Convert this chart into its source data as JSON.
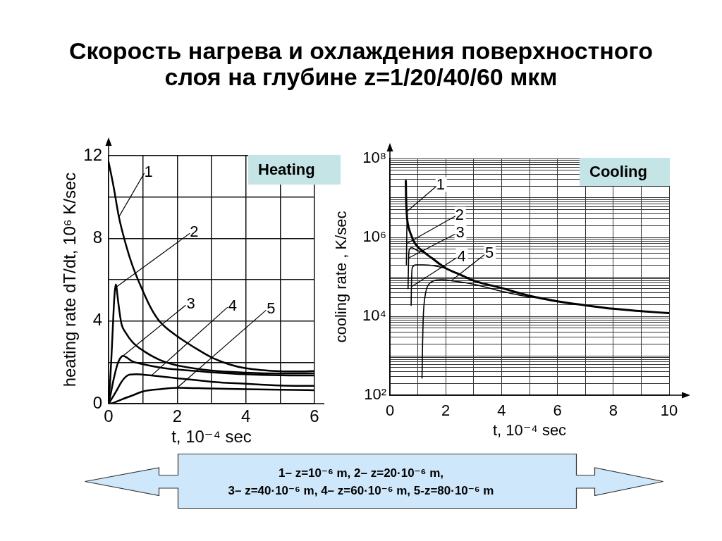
{
  "chart_data": [
    {
      "type": "line",
      "title": "Скорость нагрева и охлаждения поверхностного слоя на глубине z=1/20/40/60 мкм",
      "subtitle": "Heating",
      "xlabel": "t, 10⁻⁴ sec",
      "ylabel": "heating rate dT/dt, 10⁶ K/sec",
      "annotations": [
        "1– z=10⁻⁶ m, 2– z=20·10⁻⁶ m,",
        "3– z=40·10⁻⁶ m, 4– z=60·10⁻⁶ m, 5-z=80·10⁻⁶ m"
      ],
      "xlim": [
        0,
        6
      ],
      "xticks": [
        0,
        {
          "value": 1,
          "label": null
        },
        2,
        {
          "value": 3,
          "label": null
        },
        4,
        {
          "value": 5,
          "label": null
        },
        6
      ],
      "ylim": [
        0,
        12
      ],
      "yticks": [
        0,
        {
          "value": 2,
          "label": null
        },
        4,
        {
          "value": 6,
          "label": null
        },
        8,
        {
          "value": 10,
          "label": null
        },
        12
      ],
      "grid": true,
      "legend": false,
      "marker": "none",
      "line_style": "solid",
      "series": [
        {
          "name": "1",
          "color": "#000000",
          "x": [
            0,
            0.14,
            0.3,
            0.5,
            0.7,
            1,
            1.26,
            1.5,
            2,
            2.5,
            3,
            3.5,
            4,
            4.5,
            5,
            5.5,
            6
          ],
          "values": [
            11.7,
            10.55,
            9.04,
            7.72,
            6.66,
            5.45,
            4.55,
            3.96,
            3.26,
            2.72,
            2.24,
            1.91,
            1.71,
            1.62,
            1.57,
            1.56,
            1.58
          ]
        },
        {
          "name": "2",
          "color": "#000000",
          "x": [
            0,
            0.05,
            0.1,
            0.17,
            0.21,
            0.23,
            0.26,
            0.32,
            0.38,
            0.5,
            0.7,
            1,
            1.5,
            2,
            3,
            4,
            5,
            6
          ],
          "values": [
            0,
            1.2,
            2.84,
            5.2,
            5.77,
            5.65,
            5.21,
            4.42,
            3.83,
            3.43,
            2.97,
            2.57,
            2.11,
            1.85,
            1.6,
            1.5,
            1.46,
            1.47
          ]
        },
        {
          "name": "3",
          "color": "#000000",
          "x": [
            0,
            0.06,
            0.14,
            0.26,
            0.34,
            0.42,
            0.7,
            1,
            1.5,
            2,
            3,
            4,
            5,
            6
          ],
          "values": [
            0,
            0.46,
            1.12,
            1.91,
            2.2,
            2.31,
            2.04,
            1.91,
            1.75,
            1.65,
            1.52,
            1.42,
            1.37,
            1.36
          ]
        },
        {
          "name": "4",
          "color": "#000000",
          "x": [
            0,
            0.1,
            0.22,
            0.38,
            0.5,
            0.62,
            0.8,
            1.25,
            2,
            3,
            4,
            5,
            6
          ],
          "values": [
            0,
            0.26,
            0.59,
            1.06,
            1.3,
            1.41,
            1.42,
            1.36,
            1.23,
            1.06,
            0.96,
            0.88,
            0.86
          ]
        },
        {
          "name": "5",
          "color": "#000000",
          "x": [
            0,
            0.14,
            0.38,
            0.7,
            1,
            1.5,
            2,
            3,
            4,
            5,
            6
          ],
          "values": [
            0,
            0.04,
            0.2,
            0.4,
            0.59,
            0.7,
            0.77,
            0.73,
            0.7,
            0.67,
            0.65
          ]
        }
      ]
    },
    {
      "type": "line",
      "subtitle": "Cooling",
      "xlabel": "t, 10⁻⁴ sec",
      "ylabel": "cooling rate , K/sec",
      "log": true,
      "xlim": [
        0,
        10
      ],
      "xticks": [
        0,
        {
          "value": 1,
          "label": null
        },
        2,
        {
          "value": 3,
          "label": null
        },
        4,
        {
          "value": 5,
          "label": null
        },
        6,
        {
          "value": 7,
          "label": null
        },
        8,
        {
          "value": 9,
          "label": null
        },
        10
      ],
      "ylim": [
        100,
        100000000
      ],
      "yticks": [
        {
          "value": 100,
          "label": "10²"
        },
        {
          "value": 200,
          "label": null
        },
        {
          "value": 300,
          "label": null
        },
        {
          "value": 400,
          "label": null
        },
        {
          "value": 500,
          "label": null
        },
        {
          "value": 600,
          "label": null
        },
        {
          "value": 700,
          "label": null
        },
        {
          "value": 800,
          "label": null
        },
        {
          "value": 900,
          "label": null
        },
        {
          "value": 1000,
          "label": null
        },
        {
          "value": 2000,
          "label": null
        },
        {
          "value": 3000,
          "label": null
        },
        {
          "value": 4000,
          "label": null
        },
        {
          "value": 5000,
          "label": null
        },
        {
          "value": 6000,
          "label": null
        },
        {
          "value": 7000,
          "label": null
        },
        {
          "value": 8000,
          "label": null
        },
        {
          "value": 9000,
          "label": null
        },
        {
          "value": 10000,
          "label": "10⁴"
        },
        {
          "value": 20000,
          "label": null
        },
        {
          "value": 30000,
          "label": null
        },
        {
          "value": 40000,
          "label": null
        },
        {
          "value": 50000,
          "label": null
        },
        {
          "value": 60000,
          "label": null
        },
        {
          "value": 70000,
          "label": null
        },
        {
          "value": 80000,
          "label": null
        },
        {
          "value": 90000,
          "label": null
        },
        {
          "value": 100000,
          "label": null
        },
        {
          "value": 200000,
          "label": null
        },
        {
          "value": 300000,
          "label": null
        },
        {
          "value": 400000,
          "label": null
        },
        {
          "value": 500000,
          "label": null
        },
        {
          "value": 600000,
          "label": null
        },
        {
          "value": 700000,
          "label": null
        },
        {
          "value": 800000,
          "label": null
        },
        {
          "value": 900000,
          "label": null
        },
        {
          "value": 1000000,
          "label": "10⁶"
        },
        {
          "value": 2000000,
          "label": null
        },
        {
          "value": 3000000,
          "label": null
        },
        {
          "value": 4000000,
          "label": null
        },
        {
          "value": 5000000,
          "label": null
        },
        {
          "value": 6000000,
          "label": null
        },
        {
          "value": 7000000,
          "label": null
        },
        {
          "value": 8000000,
          "label": null
        },
        {
          "value": 9000000,
          "label": null
        },
        {
          "value": 10000000,
          "label": null
        },
        {
          "value": 20000000,
          "label": null
        },
        {
          "value": 30000000,
          "label": null
        },
        {
          "value": 40000000,
          "label": null
        },
        {
          "value": 50000000,
          "label": null
        },
        {
          "value": 60000000,
          "label": null
        },
        {
          "value": 70000000,
          "label": null
        },
        {
          "value": 80000000,
          "label": null
        },
        {
          "value": 90000000,
          "label": null
        },
        {
          "value": 100000000,
          "label": "10⁸"
        }
      ],
      "grid": true,
      "legend": false,
      "marker": "none",
      "line_style": "solid",
      "series": [
        {
          "name": "1",
          "color": "#000000",
          "x": [
            0.57,
            0.58,
            0.6,
            0.62,
            0.66,
            0.75,
            0.9,
            1.24,
            1.5,
            2,
            2.5,
            3,
            4,
            5,
            6,
            7,
            8,
            9,
            10
          ],
          "values": [
            27000000,
            10000000,
            4500000,
            2800000,
            1900000,
            1200000,
            700000,
            410000,
            300000,
            165000,
            115000,
            80000,
            52000,
            33000,
            24000,
            19000,
            15500,
            13500,
            12000
          ]
        },
        {
          "name": "2",
          "color": "#000000",
          "x": [
            0.59,
            0.6,
            0.61,
            0.63
          ],
          "values": [
            200000,
            700000,
            2000000,
            2600000
          ]
        },
        {
          "name": "3",
          "color": "#000000",
          "x": [
            0.65,
            0.67,
            0.7,
            0.78,
            0.9,
            1,
            1.2
          ],
          "values": [
            50000,
            300000,
            500000,
            550000,
            500000,
            460000,
            420000
          ]
        },
        {
          "name": "4",
          "color": "#000000",
          "x": [
            0.76,
            0.77,
            0.8,
            0.93,
            1.2,
            1.5,
            1.75,
            1.95
          ],
          "values": [
            19000,
            56000,
            170000,
            200000,
            200000,
            195000,
            180000,
            168000
          ]
        },
        {
          "name": "5",
          "color": "#000000",
          "x": [
            1.15,
            1.17,
            1.19,
            1.22,
            1.28,
            1.35,
            1.56,
            1.85,
            2.2,
            3,
            4,
            5
          ],
          "values": [
            270,
            2000,
            8000,
            19000,
            40000,
            58000,
            79000,
            85000,
            80000,
            65000,
            43000,
            30500
          ]
        }
      ]
    }
  ]
}
